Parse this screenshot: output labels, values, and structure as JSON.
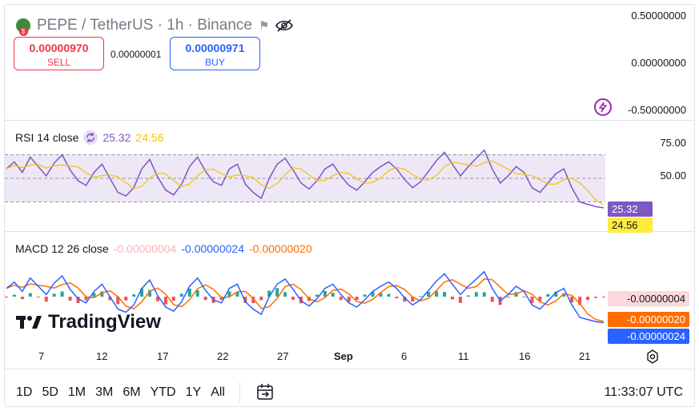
{
  "header": {
    "symbol_title": "PEPE / TetherUS · 1h · Binance",
    "sell": {
      "price": "0.00000970",
      "label": "SELL"
    },
    "spread": "0.00000001",
    "buy": {
      "price": "0.00000971",
      "label": "BUY"
    },
    "icons": [
      "pepe-coin-icon",
      "flag-icon",
      "eye-off-icon"
    ]
  },
  "price_axis": [
    "0.50000000",
    "0.00000000",
    "-0.50000000"
  ],
  "rsi": {
    "label": "RSI 14 close",
    "value": "25.32",
    "ma_value": "24.56",
    "axis": [
      "75.00",
      "50.00"
    ],
    "tag_rsi": "25.32",
    "tag_ma": "24.56",
    "band": [
      30,
      70
    ],
    "colors": {
      "rsi": "#7e57c2",
      "ma": "#f6c400",
      "band": "#ede7f6"
    }
  },
  "macd": {
    "label": "MACD 12 26 close",
    "hist": "-0.00000004",
    "macd": "-0.00000024",
    "signal": "-0.00000020",
    "tag_hist": "-0.00000004",
    "tag_signal": "-0.00000020",
    "tag_macd": "-0.00000024",
    "colors": {
      "macd": "#2962ff",
      "signal": "#ff6d00",
      "hist_up": "#26a69a",
      "hist_down": "#ef5350"
    }
  },
  "watermark": "TradingView",
  "x_axis": [
    "7",
    "12",
    "17",
    "22",
    "27",
    "Sep",
    "6",
    "11",
    "16",
    "21"
  ],
  "toolbar": {
    "ranges": [
      "1D",
      "5D",
      "1M",
      "3M",
      "6M",
      "YTD",
      "1Y",
      "All"
    ],
    "time": "11:33:07 UTC"
  },
  "chart_data": {
    "type": "line",
    "series": [
      {
        "name": "RSI 14 close",
        "values": [
          58,
          64,
          55,
          68,
          60,
          52,
          63,
          70,
          57,
          48,
          44,
          55,
          62,
          50,
          38,
          35,
          42,
          58,
          66,
          51,
          40,
          36,
          45,
          60,
          68,
          56,
          47,
          44,
          58,
          62,
          45,
          38,
          33,
          50,
          62,
          67,
          57,
          46,
          41,
          48,
          58,
          62,
          52,
          44,
          40,
          47,
          55,
          60,
          64,
          58,
          49,
          42,
          47,
          56,
          65,
          72,
          62,
          52,
          60,
          67,
          74,
          58,
          46,
          52,
          60,
          55,
          42,
          38,
          46,
          54,
          58,
          42,
          30,
          28,
          26,
          25
        ]
      }
    ]
  }
}
